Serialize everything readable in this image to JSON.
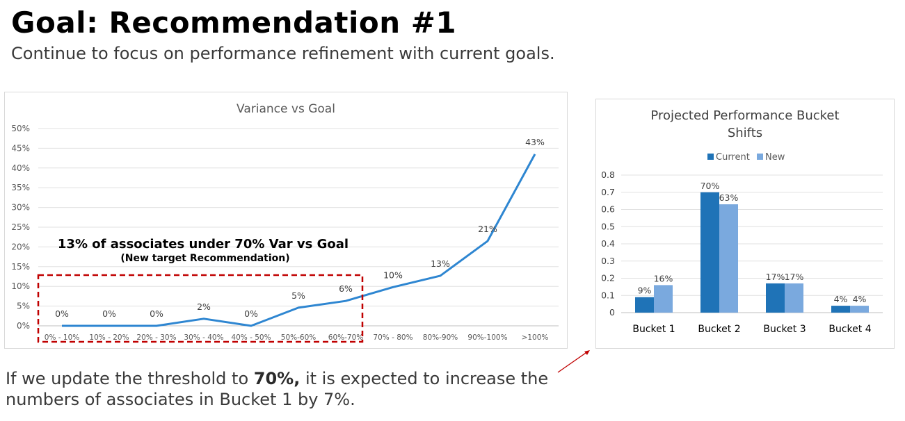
{
  "header": {
    "title": "Goal: Recommendation #1",
    "subtitle": "Continue to focus on performance refinement with current goals."
  },
  "annotation": {
    "line1": "13% of associates under 70% Var vs Goal",
    "line2": "(New target Recommendation)"
  },
  "footer": {
    "part1": "If we update the threshold to ",
    "bold": "70%,",
    "part2": " it is expected to increase the numbers of associates in Bucket 1 by 7%."
  },
  "colors": {
    "line": "#2e86d1",
    "current": "#1f73b7",
    "new": "#7aa9de",
    "highlight_box": "#c00000",
    "arrow": "#c00000"
  },
  "chart_data": [
    {
      "type": "line",
      "title": "Variance vs Goal",
      "categories": [
        "0% - 10%",
        "10% - 20%",
        "20% - 30%",
        "30% - 40%",
        "40% - 50%",
        "50%-60%",
        "60%-70%",
        "70% - 80%",
        "80%-90%",
        "90%-100%",
        ">100%"
      ],
      "values": [
        0,
        0,
        0,
        2,
        0,
        5,
        6,
        10,
        13,
        21,
        43
      ],
      "plotted_values": [
        0,
        0,
        0,
        1.8,
        0,
        4.6,
        6.3,
        9.8,
        12.7,
        21.5,
        43.5
      ],
      "data_labels": [
        "0%",
        "0%",
        "0%",
        "2%",
        "0%",
        "5%",
        "6%",
        "10%",
        "13%",
        "21%",
        "43%"
      ],
      "yticks": [
        "0%",
        "5%",
        "10%",
        "15%",
        "20%",
        "25%",
        "30%",
        "35%",
        "40%",
        "45%",
        "50%"
      ],
      "ylim": [
        0,
        50
      ],
      "grid": true,
      "legend": "none"
    },
    {
      "type": "bar",
      "title": "Projected Performance Bucket Shifts",
      "categories": [
        "Bucket 1",
        "Bucket 2",
        "Bucket 3",
        "Bucket 4"
      ],
      "series": [
        {
          "name": "Current",
          "values": [
            0.09,
            0.7,
            0.17,
            0.04
          ],
          "labels": [
            "9%",
            "70%",
            "17%",
            "4%"
          ]
        },
        {
          "name": "New",
          "values": [
            0.16,
            0.63,
            0.17,
            0.04
          ],
          "labels": [
            "16%",
            "63%",
            "17%",
            "4%"
          ]
        }
      ],
      "yticks": [
        "0",
        "0.1",
        "0.2",
        "0.3",
        "0.4",
        "0.5",
        "0.6",
        "0.7",
        "0.8"
      ],
      "ylim": [
        0,
        0.8
      ],
      "grid": true,
      "legend": "top"
    }
  ]
}
